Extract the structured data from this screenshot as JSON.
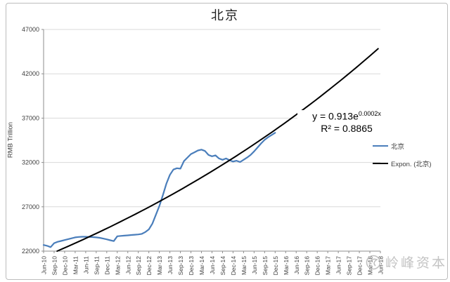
{
  "title": "北京",
  "y_axis_title": "RMB Trillion",
  "equation": {
    "prefix": "y = 0.913e",
    "exponent": "0.0002x",
    "r2": "R² = 0.8865"
  },
  "legend": {
    "series1": "北京",
    "series2": "Expon. (北京)"
  },
  "watermark": "岭峰资本",
  "colors": {
    "series": "#4a7ebb",
    "trend": "#000000",
    "grid": "#d9d9d9",
    "axis": "#8e8e8e",
    "tick_label": "#404040",
    "watermark": "#c4c4c4"
  },
  "chart_data": {
    "type": "line",
    "title": "北京",
    "ylabel": "RMB Trillion",
    "ylim": [
      22000,
      47000
    ],
    "y_ticks": [
      47000,
      42000,
      37000,
      32000,
      27000,
      22000
    ],
    "grid": true,
    "legend_position": "right",
    "x_unit": "month",
    "months_total": 96,
    "x_tick_interval_months": 3,
    "x_tick_labels": [
      "Jun-10",
      "Sep-10",
      "Dec-10",
      "Mar-11",
      "Jun-11",
      "Sep-11",
      "Dec-11",
      "Mar-12",
      "Jun-12",
      "Sep-12",
      "Dec-12",
      "Mar-13",
      "Jun-13",
      "Sep-13",
      "Dec-13",
      "Mar-14",
      "Jun-14",
      "Sep-14",
      "Dec-14",
      "Mar-15",
      "Jun-15",
      "Sep-15",
      "Dec-15",
      "Mar-16",
      "Jun-16",
      "Sep-16",
      "Dec-16",
      "Mar-17",
      "Jun-17",
      "Sep-17",
      "Dec-17",
      "Mar-18",
      "Jun-18"
    ],
    "series": [
      {
        "name": "北京",
        "color": "#4a7ebb",
        "start": "Jun-10",
        "end": "Dec-15",
        "interval_months": 1,
        "values": [
          22700,
          22600,
          22450,
          22900,
          23050,
          23150,
          23250,
          23350,
          23450,
          23550,
          23600,
          23620,
          23620,
          23600,
          23580,
          23550,
          23500,
          23420,
          23330,
          23230,
          23130,
          23680,
          23720,
          23750,
          23780,
          23820,
          23850,
          23880,
          23950,
          24150,
          24450,
          25100,
          26100,
          27100,
          28300,
          29600,
          30600,
          31200,
          31350,
          31300,
          32150,
          32550,
          32950,
          33150,
          33350,
          33450,
          33300,
          32850,
          32700,
          32800,
          32450,
          32300,
          32450,
          32250,
          32100,
          32200,
          32050,
          32300,
          32550,
          32850,
          33250,
          33700,
          34150,
          34550,
          34850,
          35100,
          35350
        ]
      },
      {
        "name": "Expon. (北京)",
        "color": "#000000",
        "fit": "exponential",
        "equation_display": "y = 0.913e^0.0002x",
        "r2": 0.8865,
        "render": {
          "a": 21350,
          "b_per_month": 0.00778,
          "month_end": 96
        },
        "note": "trendline clipped at y-min, visible from ~Oct-10 (22000) to Jun-18 (~45000)"
      }
    ]
  }
}
